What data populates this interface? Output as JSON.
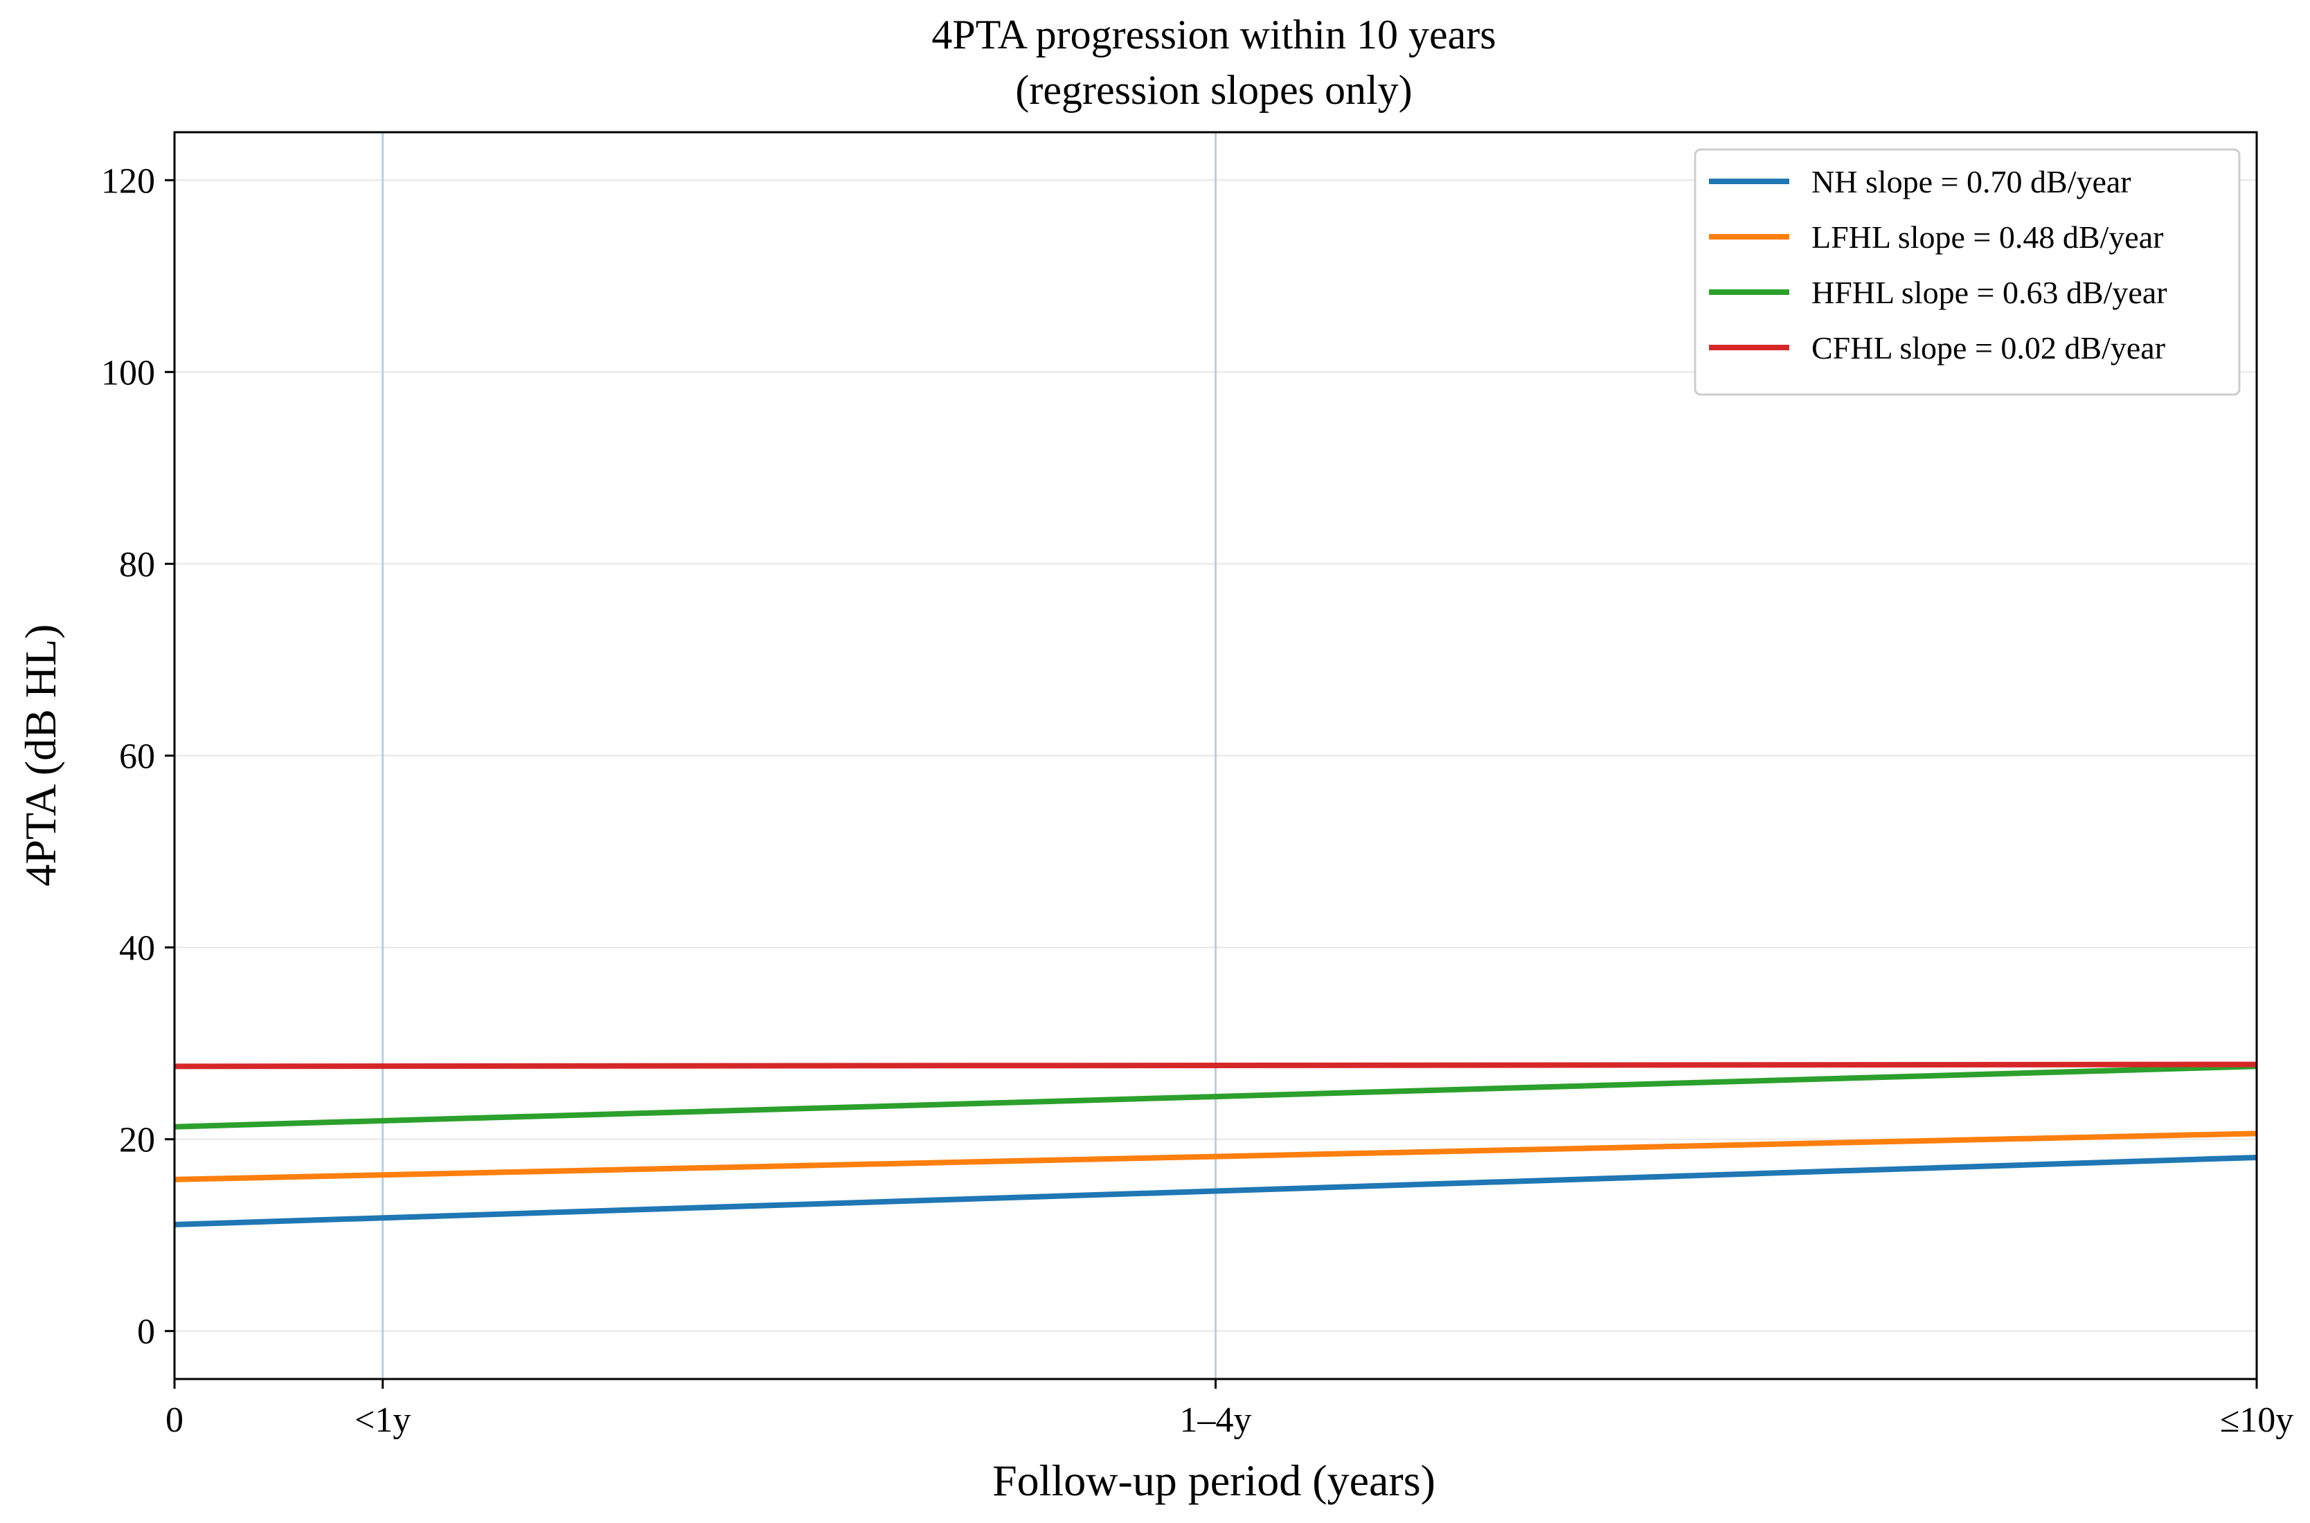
{
  "chart_data": {
    "type": "line",
    "title": "4PTA progression within 10 years",
    "subtitle": "(regression slopes only)",
    "xlabel": "Follow-up period (years)",
    "ylabel": "4PTA (dB HL)",
    "xlim": [
      0,
      10
    ],
    "ylim": [
      -5,
      125
    ],
    "x_ticks": [
      {
        "value": 0,
        "label": "0"
      },
      {
        "value": 1,
        "label": "<1y"
      },
      {
        "value": 5,
        "label": "1–4y"
      },
      {
        "value": 10,
        "label": "≤10y"
      }
    ],
    "y_ticks": [
      {
        "value": 0,
        "label": "0"
      },
      {
        "value": 20,
        "label": "20"
      },
      {
        "value": 40,
        "label": "40"
      },
      {
        "value": 60,
        "label": "60"
      },
      {
        "value": 80,
        "label": "80"
      },
      {
        "value": 100,
        "label": "100"
      },
      {
        "value": 120,
        "label": "120"
      }
    ],
    "vertical_reference_lines": [
      1,
      5
    ],
    "grid": true,
    "legend_position": "top-right",
    "series": [
      {
        "name": "NH slope = 0.70 dB/year",
        "color": "#1f77b4",
        "x": [
          0,
          10
        ],
        "y": [
          11.1,
          18.1
        ]
      },
      {
        "name": "LFHL slope = 0.48 dB/year",
        "color": "#ff7f0e",
        "x": [
          0,
          10
        ],
        "y": [
          15.8,
          20.6
        ]
      },
      {
        "name": "HFHL slope = 0.63 dB/year",
        "color": "#2ca02c",
        "x": [
          0,
          10
        ],
        "y": [
          21.3,
          27.6
        ]
      },
      {
        "name": "CFHL slope = 0.02 dB/year",
        "color": "#d62728",
        "x": [
          0,
          10
        ],
        "y": [
          27.6,
          27.8
        ]
      }
    ]
  }
}
